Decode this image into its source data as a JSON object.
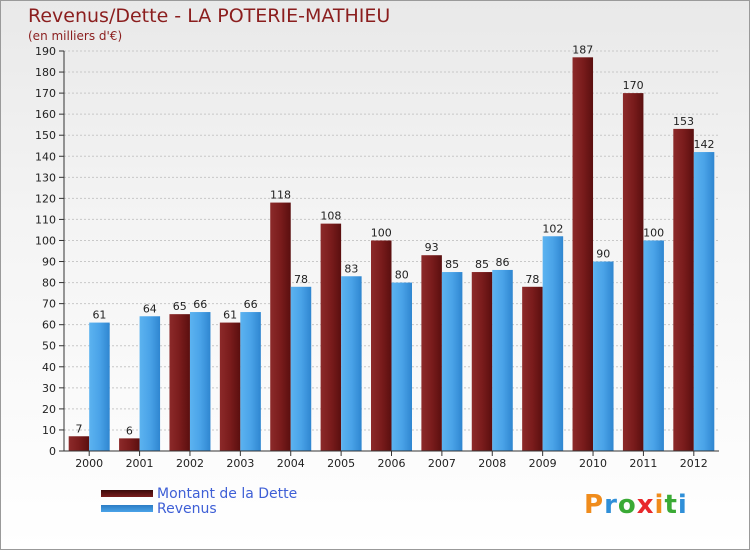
{
  "title": "Revenus/Dette - LA POTERIE-MATHIEU",
  "subtitle": "(en milliers d'€)",
  "colors": {
    "dette": "#7a1c1c",
    "revenus": "#4aa3e8",
    "axis": "#333333",
    "grid": "#c8c8c8",
    "text": "#222222",
    "title": "#8b1e1e",
    "legend_text": "#3e5fd6"
  },
  "legend": {
    "dette_label": "Montant de la Dette",
    "revenus_label": "Revenus"
  },
  "logo": {
    "text": "Proxiti",
    "letter_colors": [
      "#f08c1c",
      "#2f8fd8",
      "#3aaa35",
      "#e8282b",
      "#f08c1c",
      "#3aaa35",
      "#2f8fd8"
    ]
  },
  "chart_data": {
    "type": "bar",
    "categories": [
      "2000",
      "2001",
      "2002",
      "2003",
      "2004",
      "2005",
      "2006",
      "2007",
      "2008",
      "2009",
      "2010",
      "2011",
      "2012"
    ],
    "series": [
      {
        "name": "Montant de la Dette",
        "values": [
          7,
          6,
          65,
          61,
          118,
          108,
          100,
          93,
          85,
          78,
          187,
          170,
          153
        ]
      },
      {
        "name": "Revenus",
        "values": [
          61,
          64,
          66,
          66,
          78,
          83,
          80,
          85,
          86,
          102,
          90,
          100,
          142
        ]
      }
    ],
    "ylim": [
      0,
      190
    ],
    "ytick_step": 10,
    "grid": true,
    "legend_position": "bottom-left",
    "data_labels": true
  }
}
